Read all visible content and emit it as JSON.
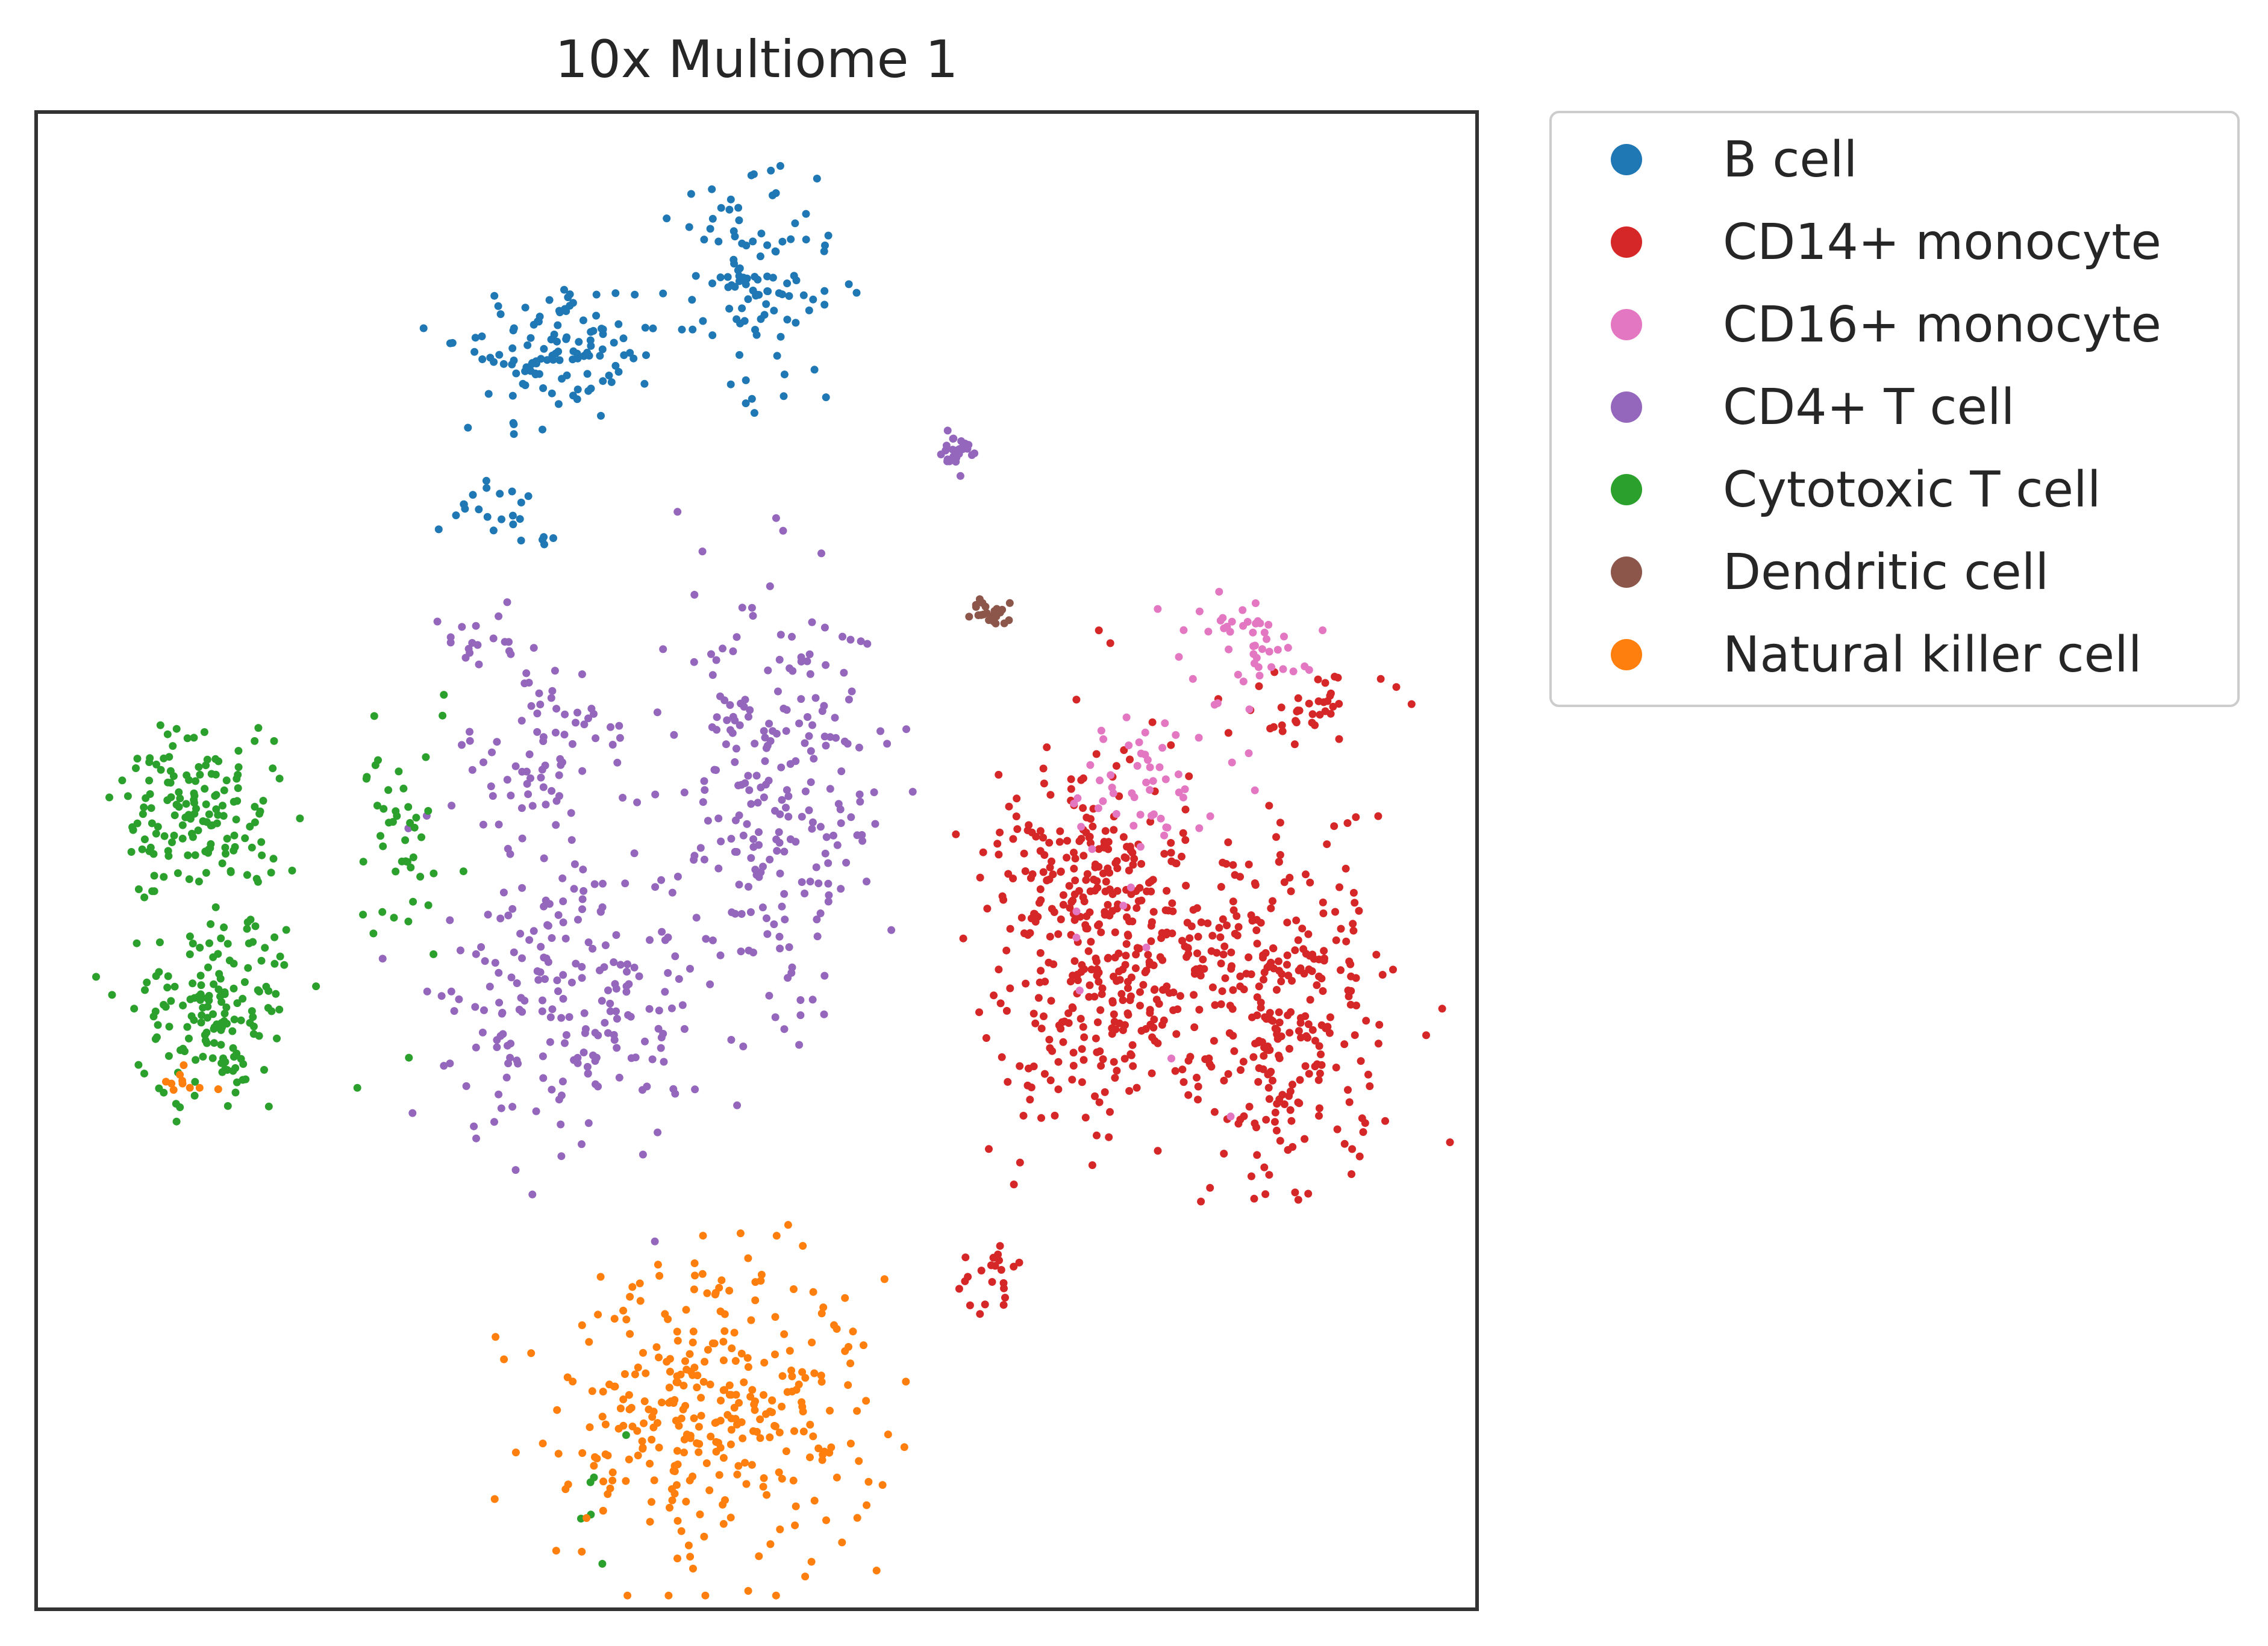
{
  "chart_data": {
    "type": "scatter",
    "title": "10x Multiome 1",
    "xlabel": "",
    "ylabel": "",
    "xlim": [
      0,
      100
    ],
    "ylim": [
      0,
      100
    ],
    "axis_ticks": false,
    "grid": false,
    "legend_placement": "outside-top-right",
    "series": [
      {
        "name": "B cell",
        "color": "#1f77b4",
        "clusters": [
          {
            "center": [
              36.0,
              84.0
            ],
            "spread": [
              3.2,
              2.2
            ],
            "count": 120,
            "seed": 11
          },
          {
            "center": [
              50.0,
              89.5
            ],
            "spread": [
              2.6,
              3.6
            ],
            "count": 110,
            "seed": 12
          },
          {
            "center": [
              31.0,
              74.0
            ],
            "spread": [
              1.4,
              1.3
            ],
            "count": 20,
            "seed": 13
          },
          {
            "center": [
              35.5,
              71.5
            ],
            "spread": [
              0.3,
              0.3
            ],
            "count": 4,
            "seed": 14
          }
        ]
      },
      {
        "name": "CD14+ monocyte",
        "color": "#d62728",
        "clusters": [
          {
            "center": [
              73.0,
              45.0
            ],
            "spread": [
              3.4,
              6.5
            ],
            "count": 330,
            "seed": 21
          },
          {
            "center": [
              87.0,
              40.0
            ],
            "spread": [
              3.6,
              5.5
            ],
            "count": 280,
            "seed": 22
          },
          {
            "center": [
              78.5,
              44.0
            ],
            "spread": [
              2.5,
              4.0
            ],
            "count": 110,
            "seed": 23
          },
          {
            "center": [
              66.0,
              22.0
            ],
            "spread": [
              1.4,
              1.5
            ],
            "count": 22,
            "seed": 24
          },
          {
            "center": [
              88.5,
              60.5
            ],
            "spread": [
              2.2,
              1.2
            ],
            "count": 38,
            "seed": 25
          }
        ]
      },
      {
        "name": "CD16+ monocyte",
        "color": "#e377c2",
        "clusters": [
          {
            "center": [
              84.5,
              64.5
            ],
            "spread": [
              2.2,
              1.6
            ],
            "count": 48,
            "seed": 31
          },
          {
            "center": [
              77.0,
              55.0
            ],
            "spread": [
              3.2,
              2.2
            ],
            "count": 52,
            "seed": 32
          },
          {
            "center": [
              74.0,
              42.0
            ],
            "spread": [
              3.5,
              6.0
            ],
            "count": 8,
            "seed": 33
          }
        ]
      },
      {
        "name": "CD4+ T cell",
        "color": "#9467bd",
        "clusters": [
          {
            "center": [
              37.0,
              40.0
            ],
            "spread": [
              4.5,
              5.0
            ],
            "count": 210,
            "seed": 41
          },
          {
            "center": [
              51.5,
              54.0
            ],
            "spread": [
              3.8,
              7.0
            ],
            "count": 240,
            "seed": 42
          },
          {
            "center": [
              34.5,
              56.5
            ],
            "spread": [
              3.0,
              3.0
            ],
            "count": 75,
            "seed": 43
          },
          {
            "center": [
              64.0,
              77.5
            ],
            "spread": [
              0.7,
              0.6
            ],
            "count": 26,
            "seed": 44
          },
          {
            "center": [
              31.0,
              64.5
            ],
            "spread": [
              2.0,
              1.2
            ],
            "count": 18,
            "seed": 45
          }
        ]
      },
      {
        "name": "Cytotoxic T cell",
        "color": "#2ca02c",
        "clusters": [
          {
            "center": [
              11.0,
              53.5
            ],
            "spread": [
              2.8,
              2.6
            ],
            "count": 150,
            "seed": 51
          },
          {
            "center": [
              12.0,
              40.0
            ],
            "spread": [
              2.6,
              3.3
            ],
            "count": 160,
            "seed": 52
          },
          {
            "center": [
              25.5,
              51.0
            ],
            "spread": [
              1.5,
              4.0
            ],
            "count": 45,
            "seed": 53
          },
          {
            "center": [
              38.0,
              7.0
            ],
            "spread": [
              1.5,
              3.5
            ],
            "count": 6,
            "seed": 54
          }
        ]
      },
      {
        "name": "Dendritic cell",
        "color": "#8c564b",
        "clusters": [
          {
            "center": [
              66.2,
              66.5
            ],
            "spread": [
              0.8,
              0.5
            ],
            "count": 26,
            "seed": 61
          }
        ]
      },
      {
        "name": "Natural killer cell",
        "color": "#ff7f0e",
        "clusters": [
          {
            "center": [
              47.0,
              13.5
            ],
            "spread": [
              5.5,
              5.0
            ],
            "count": 330,
            "seed": 71
          },
          {
            "center": [
              10.5,
              35.0
            ],
            "spread": [
              1.5,
              0.8
            ],
            "count": 10,
            "seed": 72
          }
        ]
      }
    ]
  },
  "legend": {
    "items": [
      {
        "label": "B cell",
        "color": "#1f77b4"
      },
      {
        "label": "CD14+ monocyte",
        "color": "#d62728"
      },
      {
        "label": "CD16+ monocyte",
        "color": "#e377c2"
      },
      {
        "label": "CD4+ T cell",
        "color": "#9467bd"
      },
      {
        "label": "Cytotoxic T cell",
        "color": "#2ca02c"
      },
      {
        "label": "Dendritic cell",
        "color": "#8c564b"
      },
      {
        "label": "Natural killer cell",
        "color": "#ff7f0e"
      }
    ]
  }
}
